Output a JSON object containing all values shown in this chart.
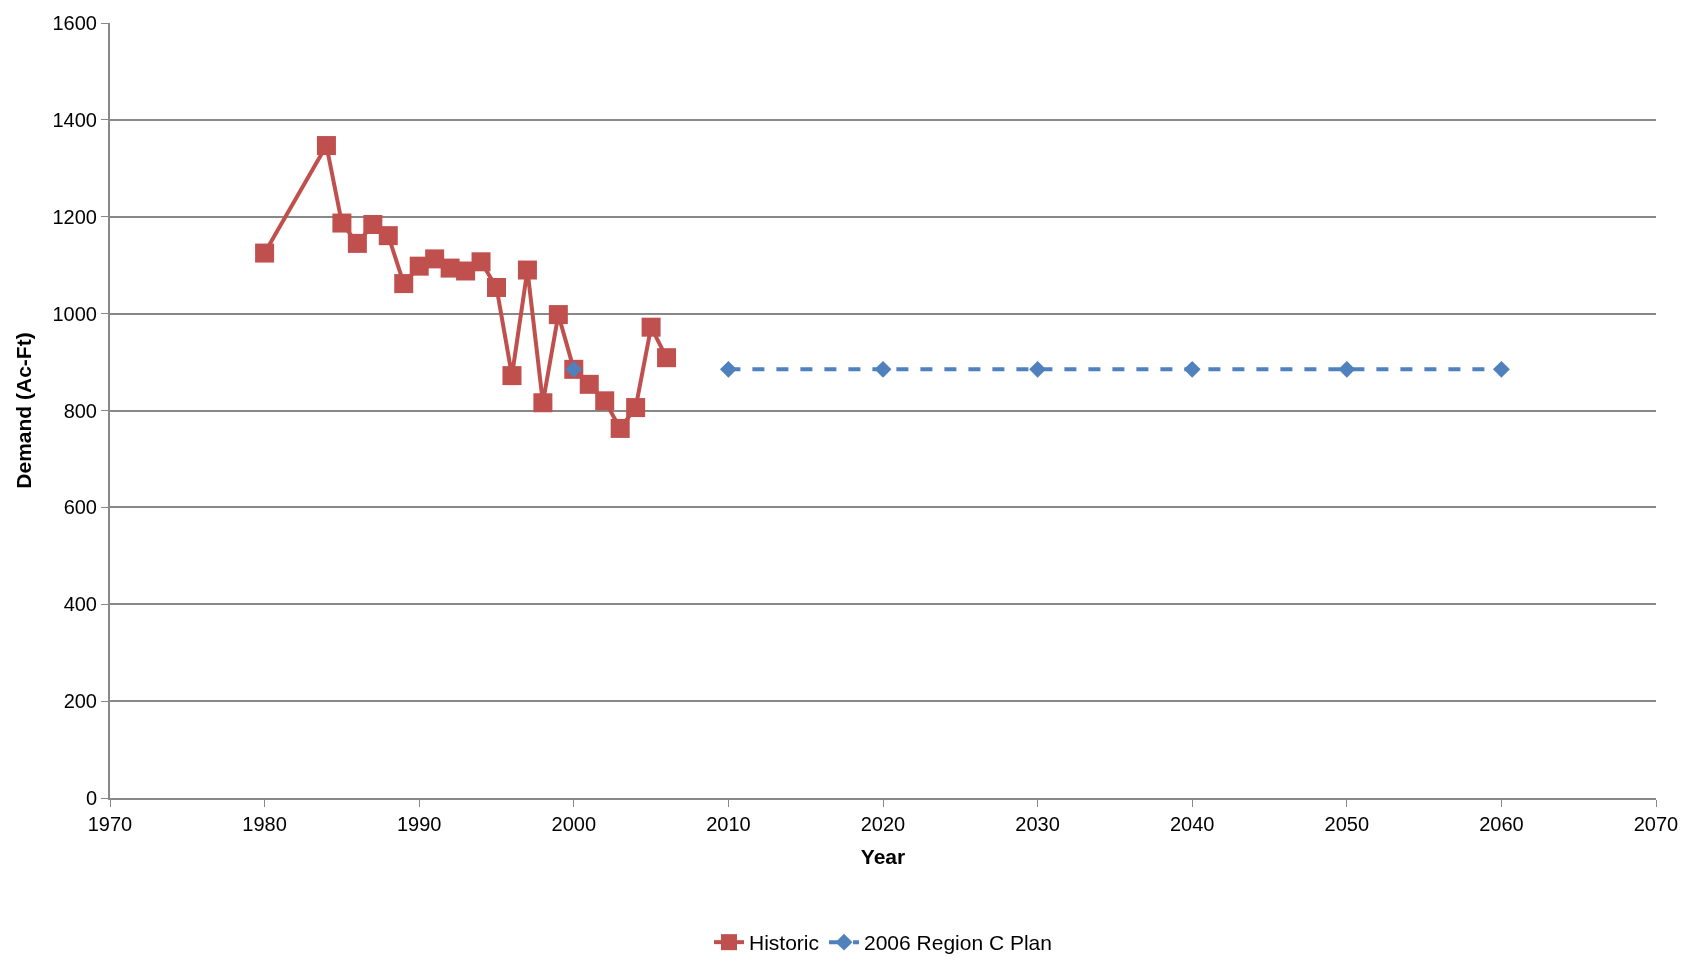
{
  "chart_data": {
    "type": "line",
    "xlabel": "Year",
    "ylabel": "Demand (Ac-Ft)",
    "xlim": [
      1970,
      2070
    ],
    "xticks": [
      1970,
      1980,
      1990,
      2000,
      2010,
      2020,
      2030,
      2040,
      2050,
      2060,
      2070
    ],
    "ylim": [
      0,
      1600
    ],
    "yticks": [
      0,
      200,
      400,
      600,
      800,
      1000,
      1200,
      1400,
      1600
    ],
    "grid": "y",
    "legend": "bottom",
    "series": [
      {
        "name": "Historic",
        "color": "#c0504d",
        "marker": "square",
        "line_style": "solid",
        "x": [
          1980,
          1984,
          1985,
          1986,
          1987,
          1988,
          1989,
          1990,
          1991,
          1992,
          1993,
          1994,
          1995,
          1996,
          1997,
          1998,
          1999,
          2000,
          2001,
          2002,
          2003,
          2004,
          2005,
          2006
        ],
        "values": [
          1125,
          1347,
          1187,
          1145,
          1184,
          1161,
          1062,
          1098,
          1113,
          1094,
          1088,
          1107,
          1054,
          872,
          1090,
          816,
          998,
          885,
          854,
          820,
          763,
          806,
          972,
          909
        ]
      },
      {
        "name": "2006 Region C Plan",
        "color": "#4f81bd",
        "marker": "diamond",
        "line_style": "dashed",
        "x": [
          2000,
          2005,
          2010,
          2020,
          2030,
          2040,
          2050,
          2060
        ],
        "values": [
          885,
          null,
          885,
          885,
          885,
          885,
          885,
          885
        ]
      }
    ]
  }
}
